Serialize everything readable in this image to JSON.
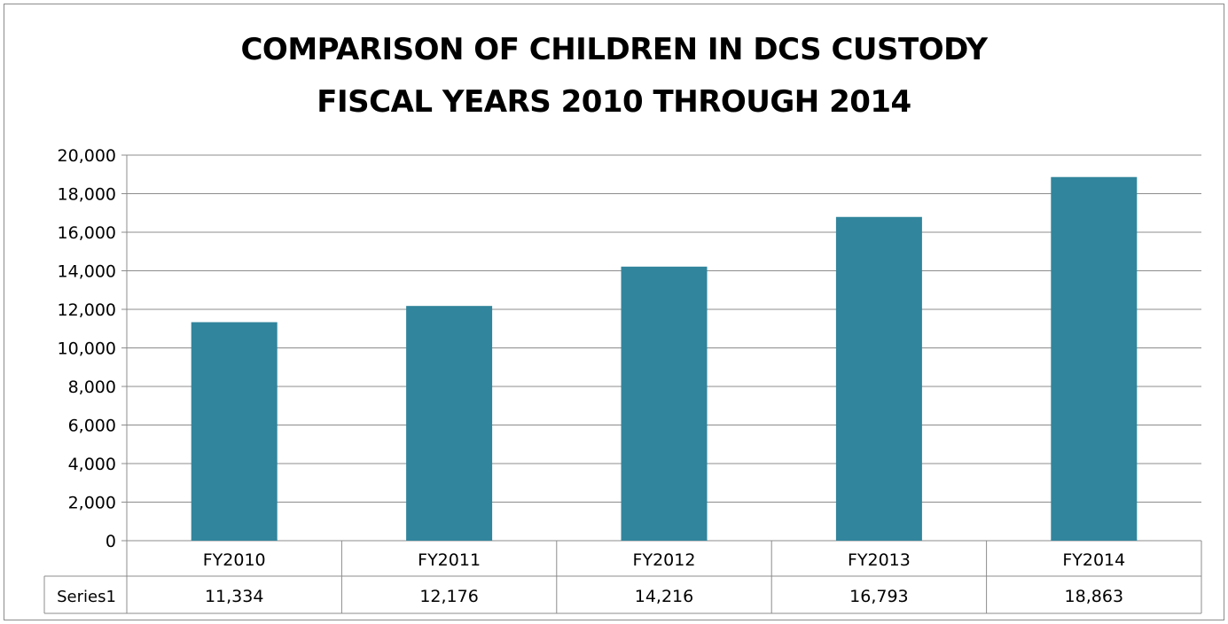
{
  "chart_data": {
    "type": "bar",
    "title_lines": [
      "COMPARISON OF CHILDREN IN DCS CUSTODY",
      "FISCAL YEARS 2010 THROUGH 2014"
    ],
    "categories": [
      "FY2010",
      "FY2011",
      "FY2012",
      "FY2013",
      "FY2014"
    ],
    "series": [
      {
        "name": "Series1",
        "values": [
          11334,
          12176,
          14216,
          16793,
          18863
        ]
      }
    ],
    "value_labels": [
      "11,334",
      "12,176",
      "14,216",
      "16,793",
      "18,863"
    ],
    "y_ticks": [
      "0",
      "2,000",
      "4,000",
      "6,000",
      "8,000",
      "10,000",
      "12,000",
      "14,000",
      "16,000",
      "18,000",
      "20,000"
    ],
    "ylim": [
      0,
      20000
    ],
    "y_step": 2000,
    "grid": true,
    "legend": "data table below chart",
    "bar_color": "#31859c"
  }
}
